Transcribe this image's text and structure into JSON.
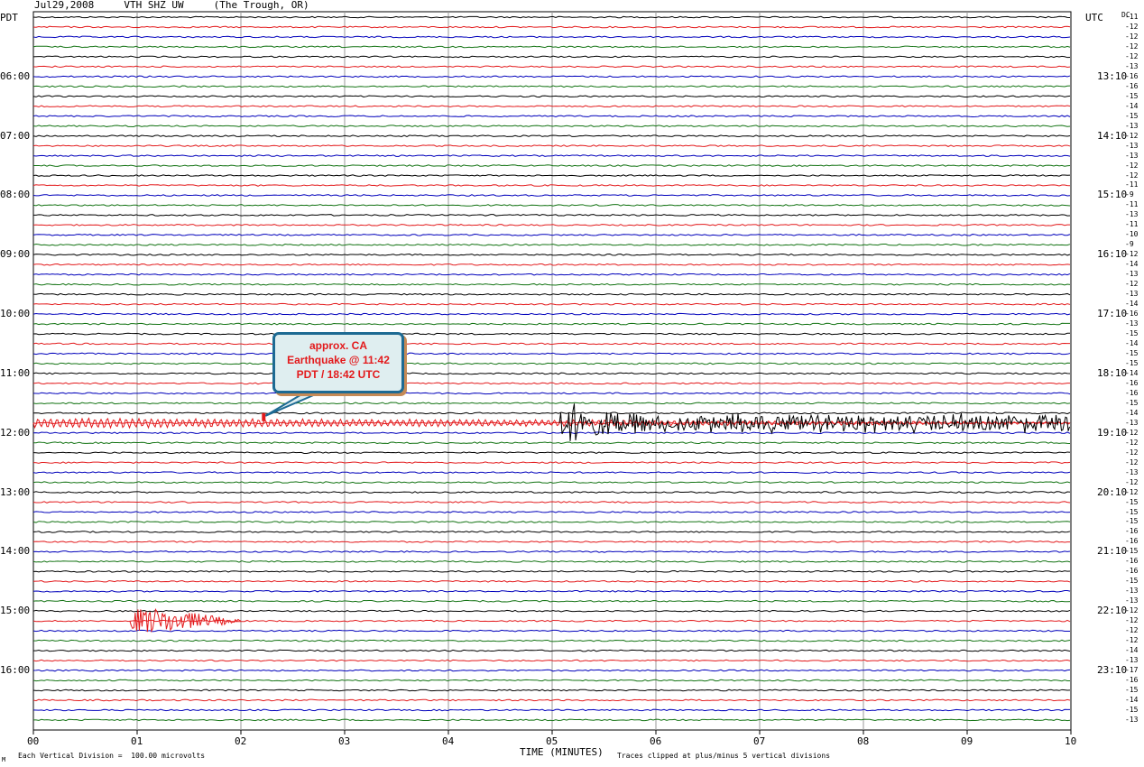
{
  "header": {
    "title": "Jul29,2008     VTH SHZ UW     (The Trough, OR)"
  },
  "corners": {
    "left": "PDT",
    "right": "UTC",
    "dc": "DC"
  },
  "footer": {
    "scale_note": "Each Vertical Division =  100.00 microvolts",
    "xaxis_title": "TIME (MINUTES)",
    "clip_note": "Traces clipped at plus/minus 5 vertical divisions",
    "mark": "M"
  },
  "annotation": {
    "line1": "approx. CA",
    "line2": "Earthquake @ 11:42",
    "line3": "PDT / 18:42 UTC",
    "color": "#e31a1c"
  },
  "chart_data": {
    "type": "line",
    "title": "Jul29,2008     VTH SHZ UW     (The Trough, OR)",
    "xlabel": "TIME (MINUTES)",
    "ylabel": "",
    "x_ticks": [
      "00",
      "01",
      "02",
      "03",
      "04",
      "05",
      "06",
      "07",
      "08",
      "09",
      "10"
    ],
    "xlim": [
      0,
      10
    ],
    "left_time_labels": [
      {
        "label": "06:00",
        "trace": 6
      },
      {
        "label": "07:00",
        "trace": 12
      },
      {
        "label": "08:00",
        "trace": 18
      },
      {
        "label": "09:00",
        "trace": 24
      },
      {
        "label": "10:00",
        "trace": 30
      },
      {
        "label": "11:00",
        "trace": 36
      },
      {
        "label": "12:00",
        "trace": 42
      },
      {
        "label": "13:00",
        "trace": 48
      },
      {
        "label": "14:00",
        "trace": 54
      },
      {
        "label": "15:00",
        "trace": 60
      },
      {
        "label": "16:00",
        "trace": 66
      }
    ],
    "right_time_labels": [
      {
        "label": "13:10",
        "trace": 6
      },
      {
        "label": "14:10",
        "trace": 12
      },
      {
        "label": "15:10",
        "trace": 18
      },
      {
        "label": "16:10",
        "trace": 24
      },
      {
        "label": "17:10",
        "trace": 30
      },
      {
        "label": "18:10",
        "trace": 36
      },
      {
        "label": "19:10",
        "trace": 42
      },
      {
        "label": "20:10",
        "trace": 48
      },
      {
        "label": "21:10",
        "trace": 54
      },
      {
        "label": "22:10",
        "trace": 60
      },
      {
        "label": "23:10",
        "trace": 66
      }
    ],
    "trace_colors": [
      "#000000",
      "#e31a1c",
      "#0000bb",
      "#137313"
    ],
    "trace_count": 72,
    "dc_offsets": [
      "-11",
      "-12",
      "-12",
      "-12",
      "-12",
      "-13",
      "-16",
      "-16",
      "-15",
      "-14",
      "-15",
      "-13",
      "-12",
      "-13",
      "-13",
      "-12",
      "-12",
      "-11",
      "-9",
      "-11",
      "-13",
      "-11",
      "-10",
      "-9",
      "-12",
      "-14",
      "-13",
      "-12",
      "-13",
      "-14",
      "-16",
      "-13",
      "-15",
      "-14",
      "-15",
      "-15",
      "-14",
      "-16",
      "-16",
      "-15",
      "-14",
      "-13",
      "-12",
      "-12",
      "-12",
      "-12",
      "-13",
      "-12",
      "-12",
      "-15",
      "-15",
      "-15",
      "-16",
      "-16",
      "-15",
      "-16",
      "-16",
      "-15",
      "-13",
      "-13",
      "-12",
      "-12",
      "-12",
      "-12",
      "-14",
      "-13",
      "-17",
      "-16",
      "-15",
      "-14",
      "-15",
      "-13"
    ],
    "events": [
      {
        "trace": 41,
        "start_min": 0.0,
        "end_min": 10.0,
        "amplitude": 6,
        "shape": "decaying",
        "color": "#e31a1c"
      },
      {
        "trace": 41,
        "start_min": 5.07,
        "end_min": 10.0,
        "amplitude": 22,
        "shape": "quake",
        "color": "#000000"
      },
      {
        "trace": 61,
        "start_min": 0.93,
        "end_min": 2.0,
        "amplitude": 14,
        "shape": "local",
        "color": "#e31a1c"
      }
    ],
    "marker": {
      "trace": 41,
      "minute": 2.22,
      "color": "#e31a1c"
    },
    "grid": true,
    "vertical_gridlines_minutes": [
      1,
      2,
      3,
      4,
      5,
      6,
      7,
      8,
      9
    ]
  }
}
